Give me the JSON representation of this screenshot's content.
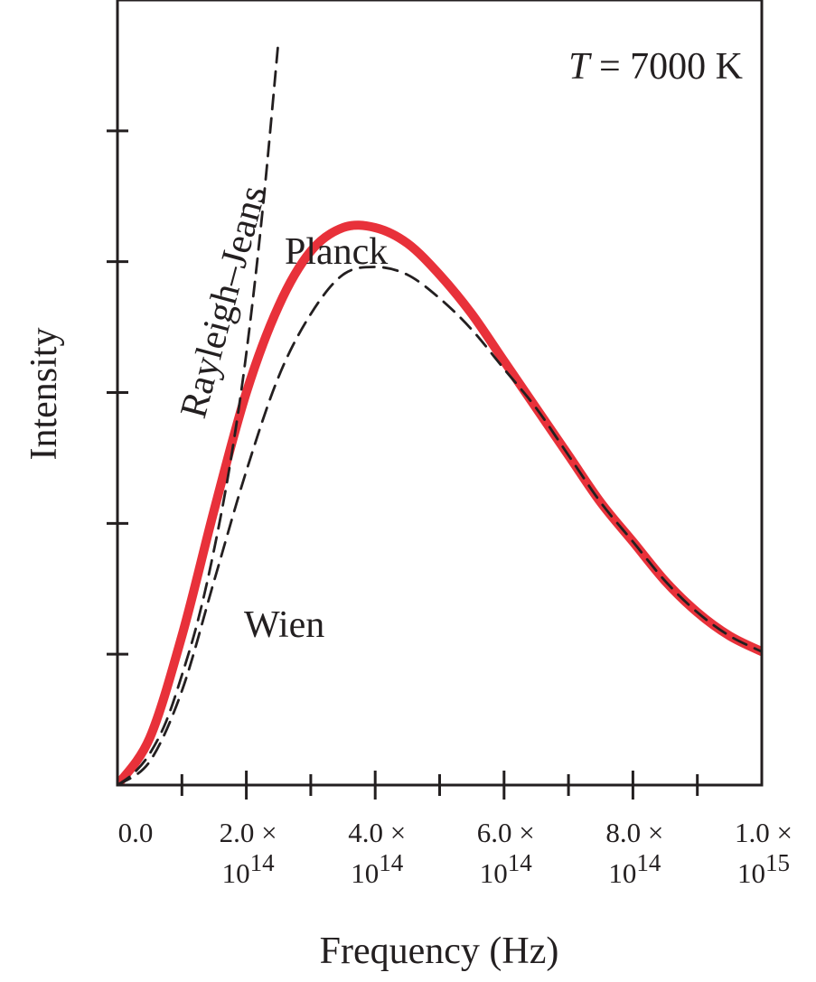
{
  "chart_data": {
    "type": "line",
    "title": "",
    "annotation": {
      "var": "T",
      "eq": " = 7000 K"
    },
    "xlabel": "Frequency (Hz)",
    "ylabel": "Intensity",
    "xlim": [
      0,
      1000000000000000.0
    ],
    "ylim": [
      0,
      1.0
    ],
    "x_ticks": [
      {
        "value": 0,
        "main": "0.0",
        "times": "",
        "exp_base": "",
        "exp": ""
      },
      {
        "value": 200000000000000.0,
        "main": "2.0",
        "times": "×",
        "exp_base": "10",
        "exp": "14"
      },
      {
        "value": 400000000000000.0,
        "main": "4.0",
        "times": "×",
        "exp_base": "10",
        "exp": "14"
      },
      {
        "value": 600000000000000.0,
        "main": "6.0",
        "times": "×",
        "exp_base": "10",
        "exp": "14"
      },
      {
        "value": 800000000000000.0,
        "main": "8.0",
        "times": "×",
        "exp_base": "10",
        "exp": "14"
      },
      {
        "value": 1000000000000000.0,
        "main": "1.0",
        "times": "×",
        "exp_base": "10",
        "exp": "15"
      }
    ],
    "x_minor_ticks": [
      100000000000000.0,
      300000000000000.0,
      500000000000000.0,
      700000000000000.0,
      900000000000000.0
    ],
    "y_ticks": [
      0.1667,
      0.3333,
      0.5,
      0.6667,
      0.8333
    ],
    "grid": false,
    "series": [
      {
        "name": "Planck",
        "color": "#e8313a",
        "style": "solid",
        "x": [
          0,
          50000000000000.0,
          100000000000000.0,
          150000000000000.0,
          200000000000000.0,
          250000000000000.0,
          300000000000000.0,
          350000000000000.0,
          400000000000000.0,
          450000000000000.0,
          500000000000000.0,
          550000000000000.0,
          600000000000000.0,
          650000000000000.0,
          700000000000000.0,
          750000000000000.0,
          800000000000000.0,
          850000000000000.0,
          900000000000000.0,
          950000000000000.0,
          1000000000000000.0
        ],
        "y": [
          0,
          0.06,
          0.19,
          0.35,
          0.5,
          0.61,
          0.68,
          0.71,
          0.71,
          0.69,
          0.65,
          0.6,
          0.54,
          0.48,
          0.42,
          0.36,
          0.31,
          0.26,
          0.22,
          0.19,
          0.17
        ]
      },
      {
        "name": "Wien",
        "color": "#231f20",
        "style": "dashed",
        "x": [
          0,
          50000000000000.0,
          100000000000000.0,
          150000000000000.0,
          200000000000000.0,
          250000000000000.0,
          300000000000000.0,
          350000000000000.0,
          400000000000000.0,
          450000000000000.0,
          500000000000000.0,
          550000000000000.0,
          600000000000000.0,
          650000000000000.0,
          700000000000000.0,
          750000000000000.0,
          800000000000000.0,
          850000000000000.0,
          900000000000000.0,
          950000000000000.0,
          1000000000000000.0
        ],
        "y": [
          0,
          0.03,
          0.12,
          0.26,
          0.4,
          0.52,
          0.6,
          0.65,
          0.66,
          0.65,
          0.62,
          0.58,
          0.53,
          0.48,
          0.42,
          0.36,
          0.31,
          0.26,
          0.22,
          0.19,
          0.17
        ]
      },
      {
        "name": "Rayleigh–Jeans",
        "color": "#231f20",
        "style": "dashed",
        "x": [
          0,
          25000000000000.0,
          50000000000000.0,
          75000000000000.0,
          100000000000000.0,
          125000000000000.0,
          150000000000000.0,
          175000000000000.0,
          200000000000000.0,
          225000000000000.0,
          250000000000000.0
        ],
        "y": [
          0,
          0.015,
          0.04,
          0.08,
          0.14,
          0.21,
          0.3,
          0.41,
          0.55,
          0.73,
          0.95
        ]
      }
    ]
  }
}
